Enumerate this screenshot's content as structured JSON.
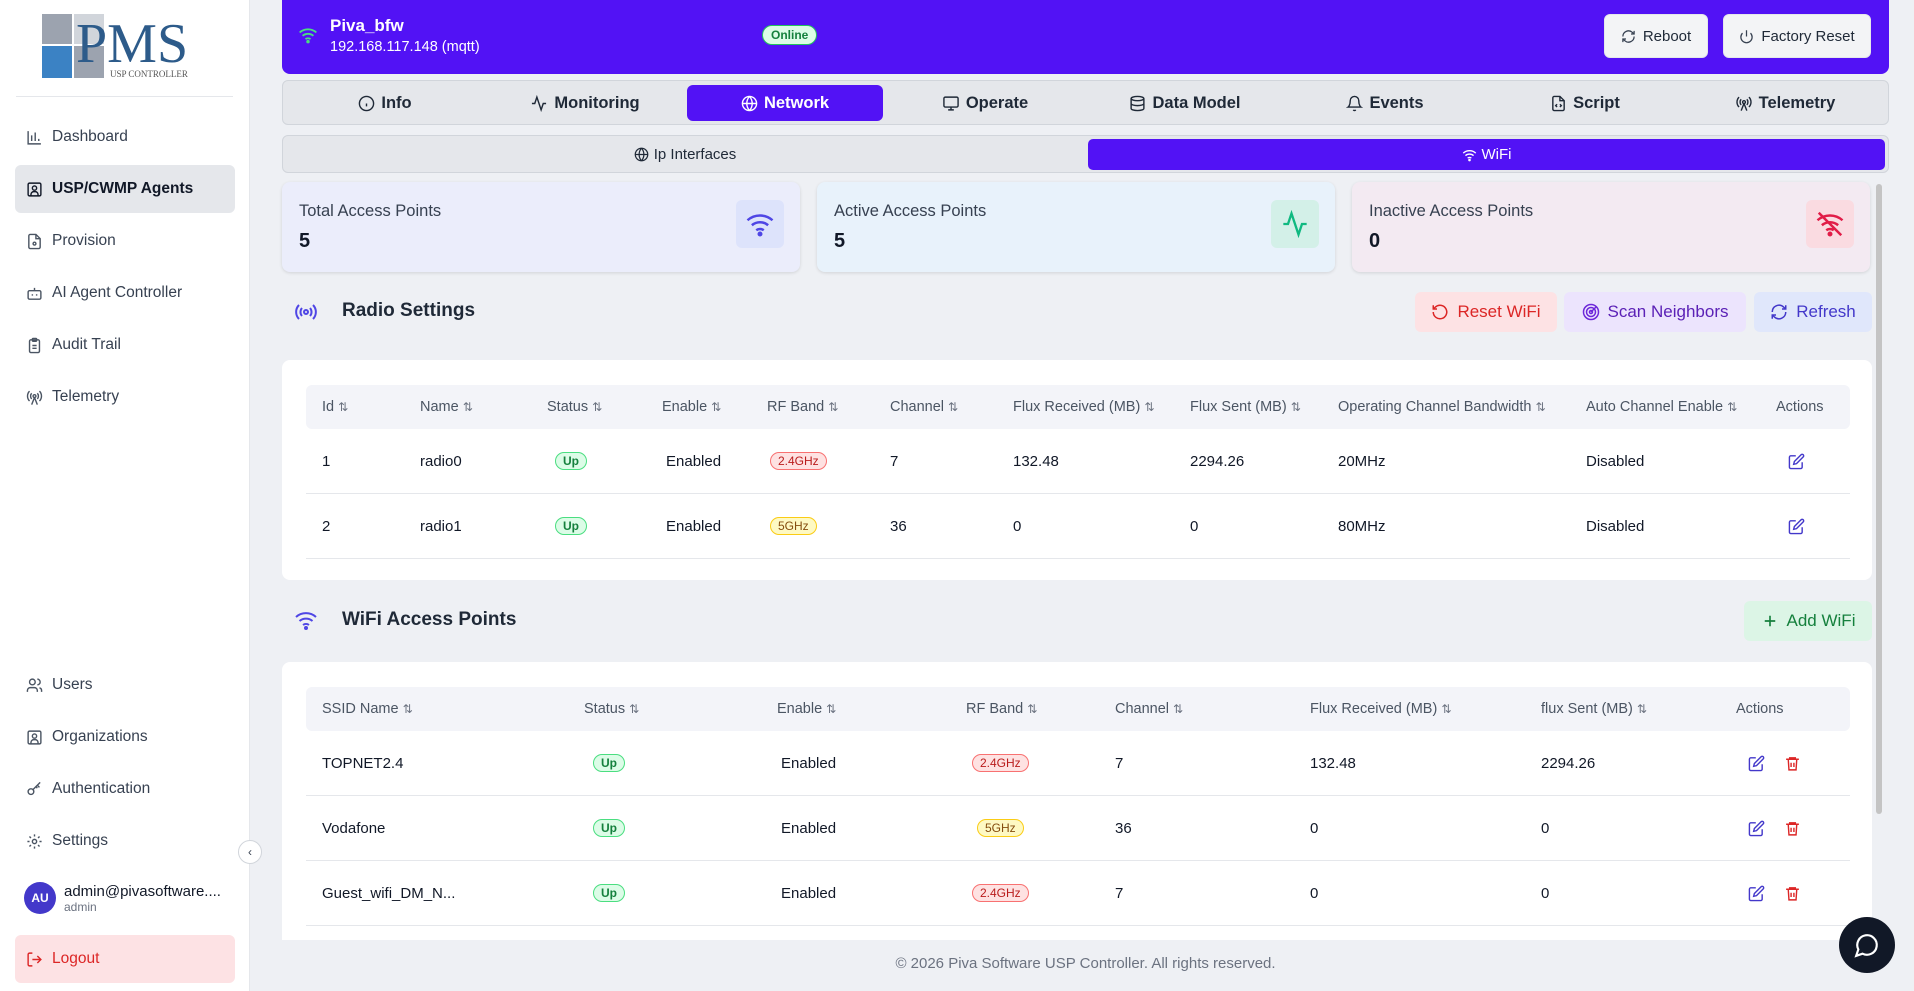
{
  "brand": {
    "logo_text": "PMS",
    "logo_sub": "USP CONTROLLER"
  },
  "sidebar": {
    "items": [
      {
        "label": "Dashboard",
        "icon": "bar-chart-icon"
      },
      {
        "label": "USP/CWMP Agents",
        "icon": "agents-icon"
      },
      {
        "label": "Provision",
        "icon": "file-icon"
      },
      {
        "label": "AI Agent Controller",
        "icon": "bot-icon"
      },
      {
        "label": "Audit Trail",
        "icon": "clipboard-icon"
      },
      {
        "label": "Telemetry",
        "icon": "antenna-icon"
      }
    ],
    "bottom_items": [
      {
        "label": "Users",
        "icon": "users-icon"
      },
      {
        "label": "Organizations",
        "icon": "organization-icon"
      },
      {
        "label": "Authentication",
        "icon": "key-icon"
      },
      {
        "label": "Settings",
        "icon": "gear-icon"
      }
    ],
    "user": {
      "initials": "AU",
      "email": "admin@pivasoftware....",
      "role": "admin"
    },
    "logout_label": "Logout"
  },
  "header": {
    "device_name": "Piva_bfw",
    "device_ip": "192.168.117.148 (mqtt)",
    "status": "Online",
    "reboot_label": "Reboot",
    "factory_reset_label": "Factory Reset"
  },
  "tabs": [
    {
      "label": "Info",
      "icon": "info-icon"
    },
    {
      "label": "Monitoring",
      "icon": "activity-icon"
    },
    {
      "label": "Network",
      "icon": "globe-icon"
    },
    {
      "label": "Operate",
      "icon": "monitor-icon"
    },
    {
      "label": "Data Model",
      "icon": "database-icon"
    },
    {
      "label": "Events",
      "icon": "bell-icon"
    },
    {
      "label": "Script",
      "icon": "file-code-icon"
    },
    {
      "label": "Telemetry",
      "icon": "antenna-icon"
    }
  ],
  "active_tab": "Network",
  "subtabs": [
    {
      "label": "Ip Interfaces",
      "icon": "globe-icon"
    },
    {
      "label": "WiFi",
      "icon": "wifi-icon"
    }
  ],
  "stats": [
    {
      "label": "Total Access Points",
      "value": "5",
      "icon": "wifi-icon",
      "color": "#4f46e5"
    },
    {
      "label": "Active Access Points",
      "value": "5",
      "icon": "activity-icon",
      "color": "#10b981"
    },
    {
      "label": "Inactive Access Points",
      "value": "0",
      "icon": "wifi-off-icon",
      "color": "#e11d48"
    }
  ],
  "radio": {
    "title": "Radio Settings",
    "reset_label": "Reset WiFi",
    "scan_label": "Scan Neighbors",
    "refresh_label": "Refresh",
    "columns": [
      "Id",
      "Name",
      "Status",
      "Enable",
      "RF Band",
      "Channel",
      "Flux Received (MB)",
      "Flux Sent (MB)",
      "Operating Channel Bandwidth",
      "Auto Channel Enable",
      "Actions"
    ],
    "rows": [
      {
        "id": "1",
        "name": "radio0",
        "status": "Up",
        "enable": "Enabled",
        "band": "2.4GHz",
        "channel": "7",
        "rx": "132.48",
        "tx": "2294.26",
        "bw": "20MHz",
        "auto": "Disabled"
      },
      {
        "id": "2",
        "name": "radio1",
        "status": "Up",
        "enable": "Enabled",
        "band": "5GHz",
        "channel": "36",
        "rx": "0",
        "tx": "0",
        "bw": "80MHz",
        "auto": "Disabled"
      }
    ]
  },
  "ap": {
    "title": "WiFi Access Points",
    "add_label": "Add WiFi",
    "columns": [
      "SSID Name",
      "Status",
      "Enable",
      "RF Band",
      "Channel",
      "Flux Received (MB)",
      "flux Sent (MB)",
      "Actions"
    ],
    "rows": [
      {
        "ssid": "TOPNET2.4",
        "status": "Up",
        "enable": "Enabled",
        "band": "2.4GHz",
        "channel": "7",
        "rx": "132.48",
        "tx": "2294.26"
      },
      {
        "ssid": "Vodafone",
        "status": "Up",
        "enable": "Enabled",
        "band": "5GHz",
        "channel": "36",
        "rx": "0",
        "tx": "0"
      },
      {
        "ssid": "Guest_wifi_DM_N...",
        "status": "Up",
        "enable": "Enabled",
        "band": "2.4GHz",
        "channel": "7",
        "rx": "0",
        "tx": "0"
      }
    ]
  },
  "footer": "© 2026 Piva Software USP Controller. All rights reserved.",
  "colors": {
    "primary": "#5212f5",
    "danger": "#dc2626",
    "success": "#15803d"
  }
}
